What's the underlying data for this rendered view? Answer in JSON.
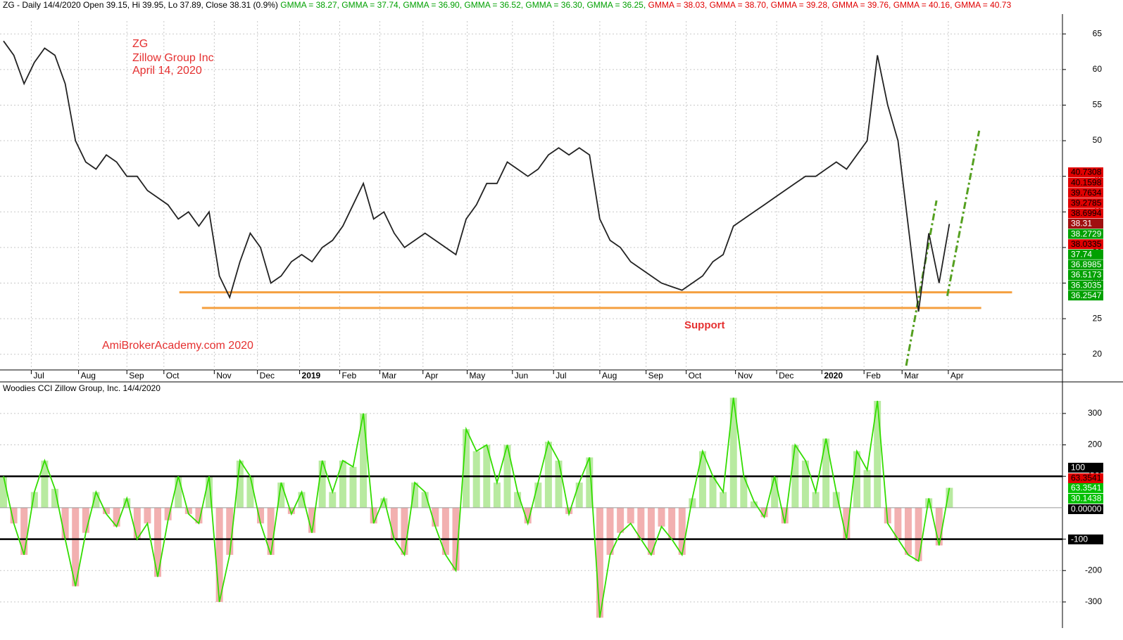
{
  "chart_data": [
    {
      "type": "line",
      "title_parts": [
        {
          "text": "ZG - Daily 14/4/2020 Open 39.15, Hi 39.95, Lo 37.89, Close 38.31 (0.9%)",
          "color": "#000000"
        },
        {
          "text": " GMMA = 38.27,",
          "color": "#00a000"
        },
        {
          "text": " GMMA = 37.74,",
          "color": "#00a000"
        },
        {
          "text": " GMMA = 36.90,",
          "color": "#00a000"
        },
        {
          "text": " GMMA = 36.52,",
          "color": "#00a000"
        },
        {
          "text": " GMMA = 36.30,",
          "color": "#00a000"
        },
        {
          "text": " GMMA = 36.25,",
          "color": "#00a000"
        },
        {
          "text": " GMMA = 38.03,",
          "color": "#e00000"
        },
        {
          "text": " GMMA = 38.70,",
          "color": "#e00000"
        },
        {
          "text": " GMMA = 39.28,",
          "color": "#e00000"
        },
        {
          "text": " GMMA = 39.76,",
          "color": "#e00000"
        },
        {
          "text": " GMMA = 40.16,",
          "color": "#e00000"
        },
        {
          "text": " GMMA = 40.73",
          "color": "#e00000"
        }
      ],
      "annotations": [
        "ZG",
        "Zillow Group Inc",
        "April 14, 2020",
        "AmiBrokerAcademy.com  2020",
        "Support"
      ],
      "x": [
        0,
        1,
        2,
        3,
        4,
        5,
        6,
        7,
        8,
        9,
        10,
        11,
        12,
        13,
        14,
        15,
        16,
        17,
        18,
        19,
        20,
        21,
        22,
        23,
        24,
        25,
        26,
        27,
        28,
        29,
        30,
        31,
        32,
        33,
        34,
        35,
        36,
        37,
        38,
        39,
        40,
        41,
        42,
        43,
        44,
        45,
        46,
        47,
        48,
        49,
        50,
        51,
        52,
        53,
        54,
        55,
        56,
        57,
        58,
        59,
        60,
        61,
        62,
        63,
        64,
        65,
        66,
        67,
        68,
        69,
        70,
        71,
        72,
        73,
        74,
        75,
        76,
        77,
        78,
        79,
        80,
        81,
        82,
        83,
        84,
        85,
        86,
        87,
        88,
        89,
        90,
        91,
        92
      ],
      "series": [
        {
          "color": "#222222",
          "values": [
            64,
            62,
            58,
            61,
            63,
            62,
            58,
            50,
            47,
            46,
            48,
            47,
            45,
            45,
            43,
            42,
            41,
            39,
            40,
            38,
            40,
            31,
            28,
            33,
            37,
            35,
            30,
            31,
            33,
            34,
            33,
            35,
            36,
            38,
            41,
            44,
            39,
            40,
            37,
            35,
            36,
            37,
            36,
            35,
            34,
            39,
            41,
            44,
            44,
            47,
            46,
            45,
            46,
            48,
            49,
            48,
            49,
            48,
            39,
            36,
            35,
            33,
            32,
            31,
            30,
            29.5,
            29,
            30,
            31,
            33,
            34,
            38,
            39,
            40,
            41,
            42,
            43,
            44,
            45,
            45,
            46,
            47,
            46,
            48,
            50,
            62,
            55,
            50,
            38,
            26,
            37,
            30,
            38.31
          ]
        }
      ],
      "xlim": [
        0,
        103
      ],
      "ylim": [
        17.8,
        66.8
      ],
      "yticks": [
        20,
        25,
        30,
        35,
        40,
        45,
        50,
        55,
        60,
        65
      ],
      "xticks": [
        {
          "value": 2.7,
          "label": "Jul"
        },
        {
          "value": 7.3,
          "label": "Aug"
        },
        {
          "value": 12,
          "label": "Sep"
        },
        {
          "value": 15.6,
          "label": "Oct"
        },
        {
          "value": 20.5,
          "label": "Nov"
        },
        {
          "value": 24.7,
          "label": "Dec"
        },
        {
          "value": 28.8,
          "label": "2019"
        },
        {
          "value": 32.7,
          "label": "Feb"
        },
        {
          "value": 36.6,
          "label": "Mar"
        },
        {
          "value": 40.8,
          "label": "Apr"
        },
        {
          "value": 45.1,
          "label": "May"
        },
        {
          "value": 49.5,
          "label": "Jun"
        },
        {
          "value": 53.5,
          "label": "Jul"
        },
        {
          "value": 58,
          "label": "Aug"
        },
        {
          "value": 62.5,
          "label": "Sep"
        },
        {
          "value": 66.4,
          "label": "Oct"
        },
        {
          "value": 71.2,
          "label": "Nov"
        },
        {
          "value": 75.2,
          "label": "Dec"
        },
        {
          "value": 79.6,
          "label": "2020"
        },
        {
          "value": 83.7,
          "label": "Feb"
        },
        {
          "value": 87.4,
          "label": "Mar"
        },
        {
          "value": 91.9,
          "label": "Apr"
        }
      ],
      "grid": true,
      "support_lines": [
        {
          "y": 28.7,
          "x": [
            17.1,
            98.1
          ],
          "color": "#f5a040"
        },
        {
          "y": 26.5,
          "x": [
            19.3,
            95.1
          ],
          "color": "#f5a040"
        }
      ],
      "trend_lines": [
        {
          "x": [
            87.8,
            90.75
          ],
          "y": [
            18.4,
            41.6
          ],
          "color": "#55a020"
        },
        {
          "x": [
            91.8,
            94.9
          ],
          "y": [
            28.2,
            51.4
          ],
          "color": "#55a020"
        }
      ],
      "price_tags": [
        {
          "value": 40.7308,
          "color": "#e00000"
        },
        {
          "value": 40.1598,
          "color": "#e00000"
        },
        {
          "value": 39.7634,
          "color": "#e00000"
        },
        {
          "value": 39.2785,
          "color": "#e00000"
        },
        {
          "value": 38.6994,
          "color": "#e00000"
        },
        {
          "value": 38.31,
          "color": "#a01010"
        },
        {
          "value": 38.2729,
          "color": "#00a000"
        },
        {
          "value": 38.0335,
          "color": "#e00000"
        },
        {
          "value": 37.74,
          "color": "#00a000"
        },
        {
          "value": 36.8985,
          "color": "#00a000"
        },
        {
          "value": 36.5173,
          "color": "#00a000"
        },
        {
          "value": 36.3035,
          "color": "#00a000"
        },
        {
          "value": 36.2547,
          "color": "#00a000"
        }
      ]
    },
    {
      "type": "cci",
      "title": "Woodies CCI  Zillow Group, Inc. 14/4/2020",
      "x": [
        0,
        1,
        2,
        3,
        4,
        5,
        6,
        7,
        8,
        9,
        10,
        11,
        12,
        13,
        14,
        15,
        16,
        17,
        18,
        19,
        20,
        21,
        22,
        23,
        24,
        25,
        26,
        27,
        28,
        29,
        30,
        31,
        32,
        33,
        34,
        35,
        36,
        37,
        38,
        39,
        40,
        41,
        42,
        43,
        44,
        45,
        46,
        47,
        48,
        49,
        50,
        51,
        52,
        53,
        54,
        55,
        56,
        57,
        58,
        59,
        60,
        61,
        62,
        63,
        64,
        65,
        66,
        67,
        68,
        69,
        70,
        71,
        72,
        73,
        74,
        75,
        76,
        77,
        78,
        79,
        80,
        81,
        82,
        83,
        84,
        85,
        86,
        87,
        88,
        89,
        90,
        91,
        92
      ],
      "series": [
        {
          "color": "#33dd00",
          "values": [
            100,
            -50,
            -150,
            50,
            150,
            60,
            -100,
            -250,
            -80,
            50,
            -20,
            -60,
            30,
            -100,
            -50,
            -220,
            -40,
            100,
            -20,
            -50,
            100,
            -300,
            -150,
            150,
            100,
            -50,
            -150,
            80,
            -20,
            50,
            -80,
            150,
            50,
            150,
            130,
            300,
            -50,
            30,
            -100,
            -150,
            80,
            50,
            -60,
            -150,
            -200,
            250,
            180,
            200,
            80,
            200,
            50,
            -50,
            80,
            210,
            150,
            -20,
            80,
            160,
            -350,
            -150,
            -80,
            -50,
            -100,
            -150,
            -60,
            -100,
            -150,
            30,
            180,
            100,
            50,
            350,
            100,
            20,
            -30,
            100,
            -50,
            200,
            150,
            50,
            220,
            50,
            -100,
            180,
            120,
            340,
            -50,
            -100,
            -150,
            -170,
            30,
            -120,
            63.3541
          ]
        }
      ],
      "xlim": [
        0,
        103
      ],
      "ylim": [
        -383,
        396
      ],
      "yticks": [
        -300,
        -200,
        -100,
        100,
        200,
        300
      ],
      "levels": [
        100,
        -100
      ],
      "tags": [
        {
          "value": 100,
          "color": "#000000"
        },
        {
          "value": 63.3541,
          "color": "#e00000"
        },
        {
          "value": 63.3541,
          "color": "#00c000"
        },
        {
          "value": 30.1438,
          "color": "#00c000"
        },
        {
          "value": 0,
          "label": "0.00000",
          "color": "#000000"
        },
        {
          "value": -100,
          "color": "#000000"
        }
      ]
    }
  ]
}
